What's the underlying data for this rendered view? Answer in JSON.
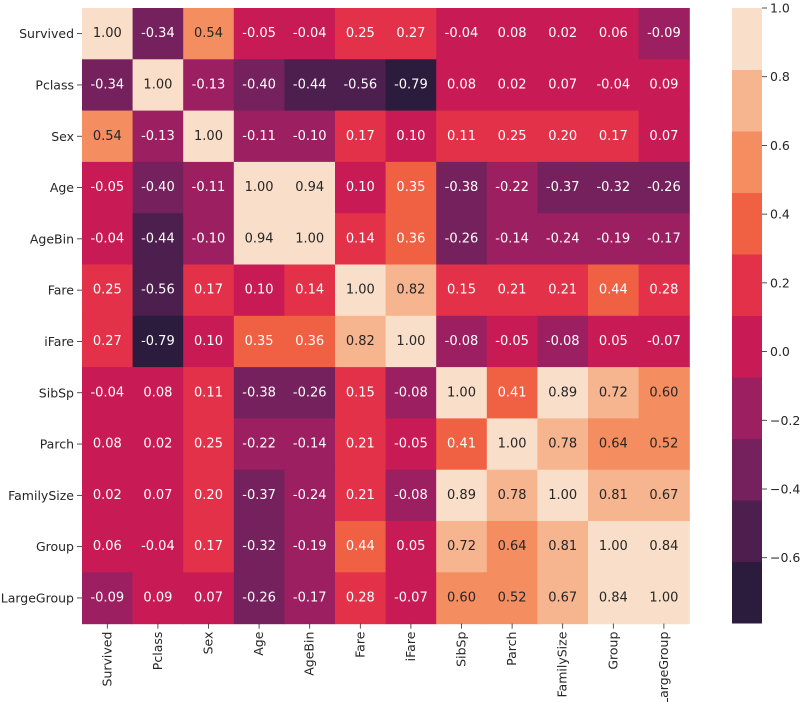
{
  "chart_data": {
    "type": "heatmap",
    "title": "",
    "xlabel": "",
    "ylabel": "",
    "labels": [
      "Survived",
      "Pclass",
      "Sex",
      "Age",
      "AgeBin",
      "Fare",
      "iFare",
      "SibSp",
      "Parch",
      "FamilySize",
      "Group",
      "LargeGroup"
    ],
    "matrix": [
      [
        1.0,
        -0.34,
        0.54,
        -0.05,
        -0.04,
        0.25,
        0.27,
        -0.04,
        0.08,
        0.02,
        0.06,
        -0.09
      ],
      [
        -0.34,
        1.0,
        -0.13,
        -0.4,
        -0.44,
        -0.56,
        -0.79,
        0.08,
        0.02,
        0.07,
        -0.04,
        0.09
      ],
      [
        0.54,
        -0.13,
        1.0,
        -0.11,
        -0.1,
        0.17,
        0.1,
        0.11,
        0.25,
        0.2,
        0.17,
        0.07
      ],
      [
        -0.05,
        -0.4,
        -0.11,
        1.0,
        0.94,
        0.1,
        0.35,
        -0.38,
        -0.22,
        -0.37,
        -0.32,
        -0.26
      ],
      [
        -0.04,
        -0.44,
        -0.1,
        0.94,
        1.0,
        0.14,
        0.36,
        -0.26,
        -0.14,
        -0.24,
        -0.19,
        -0.17
      ],
      [
        0.25,
        -0.56,
        0.17,
        0.1,
        0.14,
        1.0,
        0.82,
        0.15,
        0.21,
        0.21,
        0.44,
        0.28
      ],
      [
        0.27,
        -0.79,
        0.1,
        0.35,
        0.36,
        0.82,
        1.0,
        -0.08,
        -0.05,
        -0.08,
        0.05,
        -0.07
      ],
      [
        -0.04,
        0.08,
        0.11,
        -0.38,
        -0.26,
        0.15,
        -0.08,
        1.0,
        0.41,
        0.89,
        0.72,
        0.6
      ],
      [
        0.08,
        0.02,
        0.25,
        -0.22,
        -0.14,
        0.21,
        -0.05,
        0.41,
        1.0,
        0.78,
        0.64,
        0.52
      ],
      [
        0.02,
        0.07,
        0.2,
        -0.37,
        -0.24,
        0.21,
        -0.08,
        0.89,
        0.78,
        1.0,
        0.81,
        0.67
      ],
      [
        0.06,
        -0.04,
        0.17,
        -0.32,
        -0.19,
        0.44,
        0.05,
        0.72,
        0.64,
        0.81,
        1.0,
        0.84
      ],
      [
        -0.09,
        0.09,
        0.07,
        -0.26,
        -0.17,
        0.28,
        -0.07,
        0.6,
        0.52,
        0.67,
        0.84,
        1.0
      ]
    ],
    "colorbar": {
      "vmin": -0.79,
      "vmax": 1.0,
      "ticks": [
        -0.6,
        -0.4,
        -0.2,
        0.0,
        0.2,
        0.4,
        0.6,
        0.8,
        1.0
      ],
      "tick_labels": [
        "−0.6",
        "−0.4",
        "−0.2",
        "0.0",
        "0.2",
        "0.4",
        "0.6",
        "0.8",
        "1.0"
      ],
      "bins": 10,
      "palette": [
        "#2b1c3d",
        "#4c1f4e",
        "#75215d",
        "#9c1f61",
        "#c81b55",
        "#e33149",
        "#f06043",
        "#f48d5f",
        "#f6b48f",
        "#f9dfc9"
      ]
    },
    "text_colors": {
      "light": "#ffffff",
      "dark": "#262626"
    },
    "legend": "right"
  }
}
